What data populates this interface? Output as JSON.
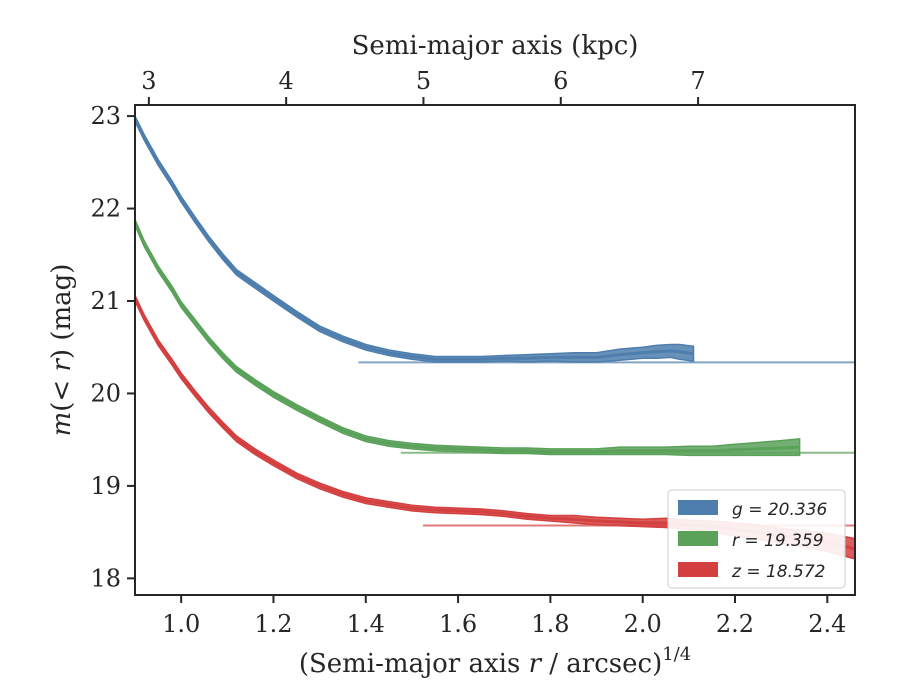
{
  "chart_data": {
    "type": "line",
    "title": "",
    "xlabel_prefix": "(Semi-major axis ",
    "xlabel_var": "r",
    "xlabel_suffix": " / arcsec)",
    "xlabel_sup": "1/4",
    "x2label": "Semi-major axis (kpc)",
    "ylabel_prefix": "m",
    "ylabel_mid": "(< ",
    "ylabel_var": "r",
    "ylabel_suffix": ") (mag)",
    "xlim": [
      0.9,
      2.46
    ],
    "ylim": [
      23.12,
      17.82
    ],
    "y_inverted": true,
    "x_ticks": [
      1.0,
      1.2,
      1.4,
      1.6,
      1.8,
      2.0,
      2.2,
      2.4
    ],
    "x_tick_labels": [
      "1.0",
      "1.2",
      "1.4",
      "1.6",
      "1.8",
      "2.0",
      "2.2",
      "2.4"
    ],
    "y_ticks": [
      18,
      19,
      20,
      21,
      22,
      23
    ],
    "y_tick_labels": [
      "18",
      "19",
      "20",
      "21",
      "22",
      "23"
    ],
    "x2_ticks_kpc": [
      3,
      4,
      5,
      6,
      7
    ],
    "x2_tick_labels": [
      "3",
      "4",
      "5",
      "6",
      "7"
    ],
    "x2_kpc_at_x": [
      [
        0.93,
        3.0
      ],
      [
        2.12,
        7.0
      ]
    ],
    "grid": false,
    "legend_position": "bottom-right",
    "series": [
      {
        "name": "g = 20.336",
        "legend_label": "g = 20.336",
        "color": "#4d7ead",
        "asymptote": 20.336,
        "x": [
          0.9,
          0.92,
          0.95,
          0.98,
          1.0,
          1.03,
          1.06,
          1.09,
          1.12,
          1.16,
          1.2,
          1.25,
          1.3,
          1.35,
          1.4,
          1.45,
          1.5,
          1.55,
          1.6,
          1.65,
          1.7,
          1.75,
          1.8,
          1.85,
          1.9,
          1.95,
          2.0,
          2.03,
          2.06,
          2.08,
          2.11
        ],
        "y": [
          22.97,
          22.77,
          22.5,
          22.27,
          22.1,
          21.88,
          21.67,
          21.48,
          21.31,
          21.17,
          21.03,
          20.86,
          20.7,
          20.59,
          20.5,
          20.44,
          20.4,
          20.37,
          20.37,
          20.37,
          20.38,
          20.38,
          20.39,
          20.39,
          20.39,
          20.42,
          20.44,
          20.45,
          20.46,
          20.45,
          20.43
        ],
        "width": [
          0.03,
          0.03,
          0.03,
          0.03,
          0.03,
          0.03,
          0.03,
          0.03,
          0.03,
          0.03,
          0.03,
          0.03,
          0.03,
          0.03,
          0.03,
          0.03,
          0.03,
          0.03,
          0.03,
          0.03,
          0.03,
          0.04,
          0.04,
          0.05,
          0.05,
          0.06,
          0.06,
          0.07,
          0.07,
          0.08,
          0.08
        ]
      },
      {
        "name": "r = 19.359",
        "legend_label": "r = 19.359",
        "color": "#5aa15a",
        "asymptote": 19.359,
        "x": [
          0.9,
          0.92,
          0.95,
          0.98,
          1.0,
          1.03,
          1.06,
          1.09,
          1.12,
          1.16,
          1.2,
          1.25,
          1.3,
          1.35,
          1.4,
          1.45,
          1.5,
          1.55,
          1.6,
          1.65,
          1.7,
          1.75,
          1.8,
          1.85,
          1.9,
          1.95,
          2.0,
          2.05,
          2.1,
          2.15,
          2.2,
          2.25,
          2.3,
          2.34
        ],
        "y": [
          21.85,
          21.62,
          21.35,
          21.13,
          20.96,
          20.77,
          20.58,
          20.41,
          20.26,
          20.12,
          19.99,
          19.85,
          19.72,
          19.6,
          19.51,
          19.46,
          19.43,
          19.41,
          19.4,
          19.39,
          19.38,
          19.38,
          19.37,
          19.37,
          19.37,
          19.38,
          19.38,
          19.38,
          19.38,
          19.38,
          19.39,
          19.4,
          19.41,
          19.42
        ],
        "width": [
          0.03,
          0.03,
          0.03,
          0.03,
          0.03,
          0.03,
          0.03,
          0.03,
          0.03,
          0.03,
          0.03,
          0.03,
          0.03,
          0.03,
          0.03,
          0.03,
          0.03,
          0.03,
          0.03,
          0.03,
          0.03,
          0.03,
          0.03,
          0.03,
          0.03,
          0.04,
          0.04,
          0.04,
          0.05,
          0.05,
          0.06,
          0.07,
          0.08,
          0.09
        ]
      },
      {
        "name": "z = 18.572",
        "legend_label": "z = 18.572",
        "color": "#d43f3f",
        "asymptote": 18.572,
        "x": [
          0.9,
          0.92,
          0.95,
          0.98,
          1.0,
          1.03,
          1.06,
          1.09,
          1.12,
          1.16,
          1.2,
          1.25,
          1.3,
          1.35,
          1.4,
          1.45,
          1.5,
          1.55,
          1.6,
          1.65,
          1.7,
          1.75,
          1.8,
          1.85,
          1.9,
          1.95,
          2.0,
          2.05,
          2.1,
          2.15,
          2.2,
          2.25,
          2.3,
          2.35,
          2.4,
          2.46
        ],
        "y": [
          21.03,
          20.82,
          20.55,
          20.34,
          20.19,
          20.0,
          19.82,
          19.66,
          19.51,
          19.37,
          19.25,
          19.11,
          19.0,
          18.91,
          18.84,
          18.8,
          18.76,
          18.74,
          18.73,
          18.72,
          18.7,
          18.67,
          18.65,
          18.64,
          18.62,
          18.61,
          18.6,
          18.6,
          18.58,
          18.56,
          18.53,
          18.5,
          18.46,
          18.43,
          18.39,
          18.32
        ],
        "width": [
          0.03,
          0.03,
          0.03,
          0.03,
          0.03,
          0.03,
          0.03,
          0.03,
          0.03,
          0.03,
          0.03,
          0.03,
          0.03,
          0.03,
          0.03,
          0.03,
          0.03,
          0.03,
          0.03,
          0.03,
          0.03,
          0.03,
          0.03,
          0.04,
          0.04,
          0.04,
          0.04,
          0.05,
          0.05,
          0.06,
          0.07,
          0.08,
          0.08,
          0.09,
          0.1,
          0.11
        ]
      }
    ]
  }
}
